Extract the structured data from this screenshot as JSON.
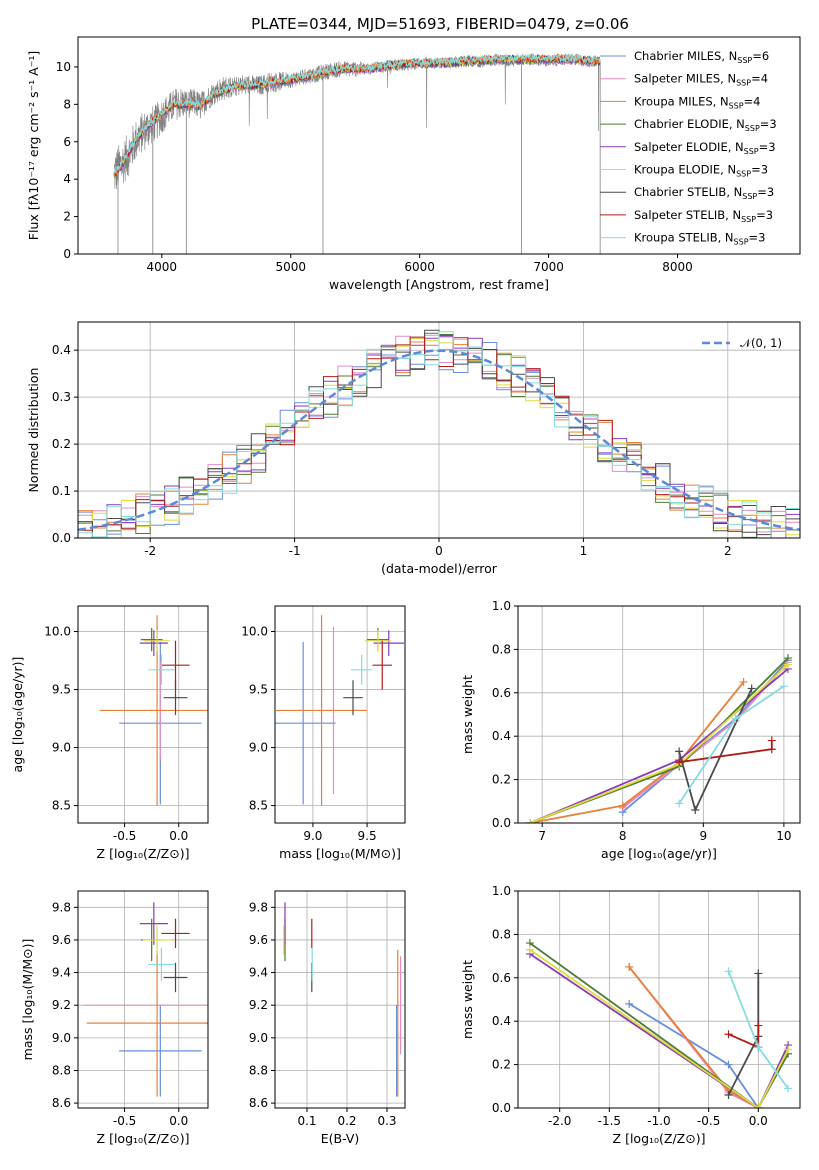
{
  "title": "PLATE=0344, MJD=51693, FIBERID=0479, z=0.06",
  "colors": {
    "Chabrier MILES": "#6a8edc",
    "Salpeter MILES": "#e28ec2",
    "Kroupa MILES": "#e8803a",
    "Chabrier ELODIE": "#4e7a3a",
    "Salpeter ELODIE": "#8a3ab9",
    "Kroupa ELODIE": "#dedc3c",
    "Chabrier STELIB": "#4a4a4a",
    "Salpeter STELIB": "#b01c1c",
    "Kroupa STELIB": "#86dcdc",
    "data": "#808080"
  },
  "models": [
    "Chabrier MILES",
    "Salpeter MILES",
    "Kroupa MILES",
    "Chabrier ELODIE",
    "Salpeter ELODIE",
    "Kroupa ELODIE",
    "Chabrier STELIB",
    "Salpeter STELIB",
    "Kroupa STELIB"
  ],
  "legend": {
    "top": [
      {
        "name": "Chabrier MILES",
        "pre": "Chabrier MILES, N",
        "sub": "SSP",
        "post": "=6"
      },
      {
        "name": "Salpeter MILES",
        "pre": "Salpeter MILES, N",
        "sub": "SSP",
        "post": "=4"
      },
      {
        "name": "Kroupa MILES",
        "pre": "Kroupa MILES, N",
        "sub": "SSP",
        "post": "=4"
      },
      {
        "name": "Chabrier ELODIE",
        "pre": "Chabrier ELODIE, N",
        "sub": "SSP",
        "post": "=3"
      },
      {
        "name": "Salpeter ELODIE",
        "pre": "Salpeter ELODIE, N",
        "sub": "SSP",
        "post": "=3"
      },
      {
        "name": "Kroupa ELODIE",
        "pre": "Kroupa ELODIE, N",
        "sub": "SSP",
        "post": "=3"
      },
      {
        "name": "Chabrier STELIB",
        "pre": "Chabrier STELIB, N",
        "sub": "SSP",
        "post": "=3"
      },
      {
        "name": "Salpeter STELIB",
        "pre": "Salpeter STELIB, N",
        "sub": "SSP",
        "post": "=3"
      },
      {
        "name": "Kroupa STELIB",
        "pre": "Kroupa STELIB, N",
        "sub": "SSP",
        "post": "=3"
      }
    ],
    "hist": "𝒩(0, 1)"
  },
  "axes_labels": {
    "spec_x": "wavelength [Angstrom, rest frame]",
    "spec_y": "Flux [fλ10⁻¹⁷ erg cm⁻² s⁻¹ A⁻¹]",
    "hist_x": "(data-model)/error",
    "hist_y": "Normed distribution",
    "age_y": "age  [log₁₀(age/yr)]",
    "mass_y": "mass [log₁₀(M/M⊙)]",
    "Z_x": "Z [log₁₀(Z/Z⊙)]",
    "mass_x": "mass [log₁₀(M/M⊙)]",
    "age_x": "age  [log₁₀(age/yr)]",
    "ebv_x": "E(B-V)",
    "mw_y": "mass weight"
  },
  "chart_data": [
    {
      "id": "spectrum",
      "type": "line",
      "title": "PLATE=0344, MJD=51693, FIBERID=0479, z=0.06",
      "xlabel": "wavelength [Angstrom, rest frame]",
      "ylabel": "Flux [fλ10⁻¹⁷ erg cm⁻² s⁻¹ A⁻¹]",
      "xlim": [
        3350,
        8950
      ],
      "ylim": [
        0,
        11.6
      ],
      "xticks": [
        4000,
        5000,
        6000,
        7000,
        8000
      ],
      "yticks": [
        0,
        2,
        4,
        6,
        8,
        10
      ],
      "data_series": {
        "name": "data",
        "x": [
          3630,
          3700,
          3750,
          3800,
          3850,
          3900,
          3950,
          4000,
          4050,
          4100,
          4150,
          4200,
          4250,
          4300,
          4350,
          4400,
          4450,
          4500,
          4550,
          4600,
          4650,
          4700,
          4750,
          4800,
          4850,
          4900,
          4950,
          5000,
          5100,
          5200,
          5300,
          5400,
          5500,
          5600,
          5700,
          5800,
          5900,
          6000,
          6100,
          6200,
          6300,
          6400,
          6500,
          6600,
          6700,
          6800,
          6900,
          7000,
          7100,
          7200,
          7300,
          7400
        ],
        "y": [
          4.3,
          4.9,
          5.4,
          6.1,
          6.5,
          6.8,
          7.0,
          7.4,
          7.7,
          8.0,
          8.1,
          8.0,
          8.1,
          7.9,
          8.3,
          8.6,
          8.8,
          8.9,
          8.9,
          9.0,
          9.1,
          9.0,
          9.0,
          9.1,
          9.2,
          9.2,
          9.3,
          9.3,
          9.5,
          9.6,
          9.8,
          9.9,
          9.9,
          9.9,
          10.0,
          10.1,
          10.1,
          10.2,
          10.2,
          10.2,
          10.3,
          10.3,
          10.3,
          10.4,
          10.3,
          10.4,
          10.4,
          10.3,
          10.4,
          10.4,
          10.3,
          10.3
        ],
        "noise": [
          1.2,
          1.1,
          1.1,
          1.0,
          1.0,
          1.0,
          0.9,
          0.9,
          0.8,
          0.8,
          0.8,
          0.7,
          0.7,
          0.7,
          0.6,
          0.6,
          0.6,
          0.6,
          0.5,
          0.5,
          0.5,
          0.5,
          0.5,
          0.5,
          0.5,
          0.5,
          0.4,
          0.4,
          0.4,
          0.4,
          0.4,
          0.4,
          0.4,
          0.3,
          0.3,
          0.3,
          0.3,
          0.3,
          0.3,
          0.3,
          0.3,
          0.3,
          0.3,
          0.3,
          0.3,
          0.3,
          0.3,
          0.3,
          0.3,
          0.3,
          0.3,
          0.3
        ]
      },
      "model_curve": {
        "x": [
          3630,
          3700,
          3800,
          3900,
          4000,
          4100,
          4200,
          4300,
          4400,
          4500,
          4600,
          4700,
          4800,
          4900,
          5000,
          5200,
          5400,
          5600,
          5800,
          6000,
          6200,
          6400,
          6600,
          6800,
          7000,
          7200,
          7400
        ],
        "y": [
          4.2,
          4.9,
          6.1,
          6.9,
          7.5,
          8.0,
          8.0,
          7.9,
          8.5,
          8.8,
          9.0,
          9.0,
          9.1,
          9.2,
          9.3,
          9.6,
          9.9,
          9.9,
          10.1,
          10.2,
          10.2,
          10.3,
          10.4,
          10.4,
          10.4,
          10.4,
          10.3
        ]
      }
    },
    {
      "id": "residual_hist",
      "type": "bar",
      "xlabel": "(data-model)/error",
      "ylabel": "Normed distribution",
      "xlim": [
        -2.5,
        2.5
      ],
      "ylim": [
        0,
        0.46
      ],
      "xticks": [
        -2,
        -1,
        0,
        1,
        2
      ],
      "yticks": [
        0.0,
        0.1,
        0.2,
        0.3,
        0.4
      ],
      "bin_width": 0.1,
      "bins_start": -2.5,
      "reference": {
        "name": "𝒩(0, 1)",
        "mean": 0,
        "sigma": 1
      }
    },
    {
      "id": "age_vs_Z",
      "type": "scatter",
      "xlabel": "Z [log₁₀(Z/Z⊙)]",
      "ylabel": "age  [log₁₀(age/yr)]",
      "xlim": [
        -0.93,
        0.27
      ],
      "ylim": [
        8.35,
        10.22
      ],
      "xticks": [
        -0.5,
        0.0
      ],
      "yticks": [
        8.5,
        9.0,
        9.5,
        10.0
      ],
      "points": [
        {
          "model": "Chabrier MILES",
          "x": -0.17,
          "y": 9.21,
          "xerr": 0.38,
          "yerr": 0.7
        },
        {
          "model": "Salpeter MILES",
          "x": -0.17,
          "y": 9.32,
          "xerr": 0.0,
          "yerr": 0.42
        },
        {
          "model": "Kroupa MILES",
          "x": -0.2,
          "y": 9.32,
          "xerr": 0.53,
          "yerr": 0.82
        },
        {
          "model": "Chabrier ELODIE",
          "x": -0.25,
          "y": 9.93,
          "xerr": 0.1,
          "yerr": 0.1
        },
        {
          "model": "Salpeter ELODIE",
          "x": -0.23,
          "y": 9.9,
          "xerr": 0.13,
          "yerr": 0.11
        },
        {
          "model": "Kroupa ELODIE",
          "x": -0.2,
          "y": 9.92,
          "xerr": 0.12,
          "yerr": 0.09
        },
        {
          "model": "Chabrier STELIB",
          "x": -0.03,
          "y": 9.43,
          "xerr": 0.11,
          "yerr": 0.15
        },
        {
          "model": "Salpeter STELIB",
          "x": -0.03,
          "y": 9.71,
          "xerr": 0.13,
          "yerr": 0.21
        },
        {
          "model": "Kroupa STELIB",
          "x": -0.16,
          "y": 9.67,
          "xerr": 0.12,
          "yerr": 0.13
        }
      ]
    },
    {
      "id": "age_vs_mass",
      "type": "scatter",
      "xlabel": "mass [log₁₀(M/M⊙)]",
      "ylabel": "",
      "xlim": [
        8.65,
        9.85
      ],
      "ylim": [
        8.35,
        10.22
      ],
      "xticks": [
        9.0,
        9.5
      ],
      "yticks": [
        8.5,
        9.0,
        9.5,
        10.0
      ],
      "points": [
        {
          "model": "Chabrier MILES",
          "x": 8.91,
          "y": 9.21,
          "xerr": 0.3,
          "yerr": 0.7
        },
        {
          "model": "Salpeter MILES",
          "x": 9.19,
          "y": 9.32,
          "xerr": 0.0,
          "yerr": 0.72
        },
        {
          "model": "Kroupa MILES",
          "x": 9.08,
          "y": 9.32,
          "xerr": 0.42,
          "yerr": 0.82
        },
        {
          "model": "Chabrier ELODIE",
          "x": 9.6,
          "y": 9.93,
          "xerr": 0.1,
          "yerr": 0.1
        },
        {
          "model": "Salpeter ELODIE",
          "x": 9.7,
          "y": 9.9,
          "xerr": 0.14,
          "yerr": 0.11
        },
        {
          "model": "Kroupa ELODIE",
          "x": 9.6,
          "y": 9.92,
          "xerr": 0.12,
          "yerr": 0.09
        },
        {
          "model": "Chabrier STELIB",
          "x": 9.37,
          "y": 9.43,
          "xerr": 0.09,
          "yerr": 0.15
        },
        {
          "model": "Salpeter STELIB",
          "x": 9.64,
          "y": 9.71,
          "xerr": 0.09,
          "yerr": 0.21
        },
        {
          "model": "Kroupa STELIB",
          "x": 9.45,
          "y": 9.67,
          "xerr": 0.1,
          "yerr": 0.13
        }
      ]
    },
    {
      "id": "massweight_vs_age",
      "type": "line",
      "xlabel": "age  [log₁₀(age/yr)]",
      "ylabel": "mass weight",
      "xlim": [
        6.7,
        10.2
      ],
      "ylim": [
        0,
        1.0
      ],
      "xticks": [
        7,
        8,
        9,
        10
      ],
      "yticks": [
        0.0,
        0.2,
        0.4,
        0.6,
        0.8,
        1.0
      ],
      "series": [
        {
          "model": "Chabrier MILES",
          "x": [
            8.0,
            8.7,
            9.4,
            10.05
          ],
          "y": [
            0.05,
            0.27,
            0.48,
            0.75
          ]
        },
        {
          "model": "Salpeter MILES",
          "x": [
            8.0,
            8.7,
            9.4,
            10.05
          ],
          "y": [
            0.07,
            0.27,
            0.47,
            0.74
          ]
        },
        {
          "model": "Kroupa MILES",
          "x": [
            6.85,
            8.0,
            8.7,
            9.5
          ],
          "y": [
            0.0,
            0.08,
            0.28,
            0.65
          ]
        },
        {
          "model": "Chabrier ELODIE",
          "x": [
            6.85,
            8.7,
            10.05
          ],
          "y": [
            0.0,
            0.26,
            0.76
          ]
        },
        {
          "model": "Salpeter ELODIE",
          "x": [
            6.85,
            8.7,
            10.05
          ],
          "y": [
            0.0,
            0.29,
            0.71
          ]
        },
        {
          "model": "Kroupa ELODIE",
          "x": [
            6.85,
            8.7,
            10.05
          ],
          "y": [
            0.0,
            0.27,
            0.73
          ]
        },
        {
          "model": "Chabrier STELIB",
          "x": [
            8.7,
            8.9,
            9.6
          ],
          "y": [
            0.33,
            0.06,
            0.62
          ]
        },
        {
          "model": "Salpeter STELIB",
          "x": [
            8.7,
            9.85,
            9.85
          ],
          "y": [
            0.28,
            0.34,
            0.38
          ]
        },
        {
          "model": "Kroupa STELIB",
          "x": [
            8.7,
            9.4,
            10.0
          ],
          "y": [
            0.09,
            0.48,
            0.63
          ]
        }
      ]
    },
    {
      "id": "mass_vs_Z",
      "type": "scatter",
      "xlabel": "Z [log₁₀(Z/Z⊙)]",
      "ylabel": "mass [log₁₀(M/M⊙)]",
      "xlim": [
        -0.93,
        0.27
      ],
      "ylim": [
        8.57,
        9.9
      ],
      "xticks": [
        -0.5,
        0.0
      ],
      "yticks": [
        8.6,
        8.8,
        9.0,
        9.2,
        9.4,
        9.6,
        9.8
      ],
      "points": [
        {
          "model": "Chabrier MILES",
          "x": -0.17,
          "y": 8.92,
          "xerr": 0.38,
          "yerr": 0.28
        },
        {
          "model": "Salpeter MILES",
          "x": -0.17,
          "y": 9.2,
          "xerr": 0.7,
          "yerr": 0.0
        },
        {
          "model": "Kroupa MILES",
          "x": -0.2,
          "y": 9.09,
          "xerr": 0.65,
          "yerr": 0.45
        },
        {
          "model": "Chabrier ELODIE",
          "x": -0.25,
          "y": 9.6,
          "xerr": 0.1,
          "yerr": 0.13
        },
        {
          "model": "Salpeter ELODIE",
          "x": -0.23,
          "y": 9.7,
          "xerr": 0.13,
          "yerr": 0.13
        },
        {
          "model": "Kroupa ELODIE",
          "x": -0.2,
          "y": 9.6,
          "xerr": 0.13,
          "yerr": 0.09
        },
        {
          "model": "Chabrier STELIB",
          "x": -0.03,
          "y": 9.37,
          "xerr": 0.11,
          "yerr": 0.09
        },
        {
          "model": "Salpeter STELIB",
          "x": -0.03,
          "y": 9.64,
          "xerr": 0.13,
          "yerr": 0.09
        },
        {
          "model": "Kroupa STELIB",
          "x": -0.16,
          "y": 9.45,
          "xerr": 0.12,
          "yerr": 0.1
        }
      ]
    },
    {
      "id": "mass_vs_ebv",
      "type": "scatter",
      "xlabel": "E(B-V)",
      "ylabel": "",
      "xlim": [
        0.02,
        0.345
      ],
      "ylim": [
        8.57,
        9.9
      ],
      "xticks": [
        0.1,
        0.2,
        0.3
      ],
      "yticks": [
        8.6,
        8.8,
        9.0,
        9.2,
        9.4,
        9.6,
        9.8
      ],
      "points": [
        {
          "model": "Chabrier MILES",
          "x": 0.324,
          "y": 8.92,
          "xerr": 0.0,
          "yerr": 0.28
        },
        {
          "model": "Salpeter MILES",
          "x": 0.334,
          "y": 9.2,
          "xerr": 0.0,
          "yerr": 0.3
        },
        {
          "model": "Kroupa MILES",
          "x": 0.327,
          "y": 9.09,
          "xerr": 0.0,
          "yerr": 0.45
        },
        {
          "model": "Chabrier ELODIE",
          "x": 0.045,
          "y": 9.6,
          "xerr": 0.0,
          "yerr": 0.13
        },
        {
          "model": "Salpeter ELODIE",
          "x": 0.045,
          "y": 9.7,
          "xerr": 0.0,
          "yerr": 0.13
        },
        {
          "model": "Kroupa ELODIE",
          "x": 0.042,
          "y": 9.6,
          "xerr": 0.0,
          "yerr": 0.09
        },
        {
          "model": "Chabrier STELIB",
          "x": 0.112,
          "y": 9.37,
          "xerr": 0.0,
          "yerr": 0.09
        },
        {
          "model": "Salpeter STELIB",
          "x": 0.112,
          "y": 9.64,
          "xerr": 0.0,
          "yerr": 0.09
        },
        {
          "model": "Kroupa STELIB",
          "x": 0.113,
          "y": 9.45,
          "xerr": 0.0,
          "yerr": 0.1
        }
      ]
    },
    {
      "id": "massweight_vs_Z",
      "type": "line",
      "xlabel": "Z [log₁₀(Z/Z⊙)]",
      "ylabel": "mass weight",
      "xlim": [
        -2.42,
        0.42
      ],
      "ylim": [
        0,
        1.0
      ],
      "xticks": [
        -2.0,
        -1.5,
        -1.0,
        -0.5,
        0.0
      ],
      "yticks": [
        0.0,
        0.2,
        0.4,
        0.6,
        0.8,
        1.0
      ],
      "series": [
        {
          "model": "Chabrier MILES",
          "x": [
            -1.3,
            -0.3,
            0.0
          ],
          "y": [
            0.48,
            0.2,
            0.0
          ]
        },
        {
          "model": "Salpeter MILES",
          "x": [
            -1.3,
            -0.3,
            0.0
          ],
          "y": [
            0.65,
            0.07,
            0.0
          ]
        },
        {
          "model": "Kroupa MILES",
          "x": [
            -1.3,
            -0.3,
            0.0
          ],
          "y": [
            0.65,
            0.08,
            0.0
          ]
        },
        {
          "model": "Chabrier ELODIE",
          "x": [
            -2.3,
            0.0,
            0.3
          ],
          "y": [
            0.76,
            0.0,
            0.25
          ]
        },
        {
          "model": "Salpeter ELODIE",
          "x": [
            -2.3,
            0.0,
            0.3
          ],
          "y": [
            0.71,
            0.0,
            0.29
          ]
        },
        {
          "model": "Kroupa ELODIE",
          "x": [
            -2.3,
            0.0,
            0.3
          ],
          "y": [
            0.73,
            0.0,
            0.27
          ]
        },
        {
          "model": "Chabrier STELIB",
          "x": [
            -0.3,
            0.0,
            0.0
          ],
          "y": [
            0.06,
            0.33,
            0.62
          ]
        },
        {
          "model": "Salpeter STELIB",
          "x": [
            -0.3,
            0.0,
            0.0
          ],
          "y": [
            0.34,
            0.28,
            0.38
          ]
        },
        {
          "model": "Kroupa STELIB",
          "x": [
            -0.3,
            0.0,
            0.3
          ],
          "y": [
            0.63,
            0.28,
            0.09
          ]
        }
      ]
    }
  ]
}
